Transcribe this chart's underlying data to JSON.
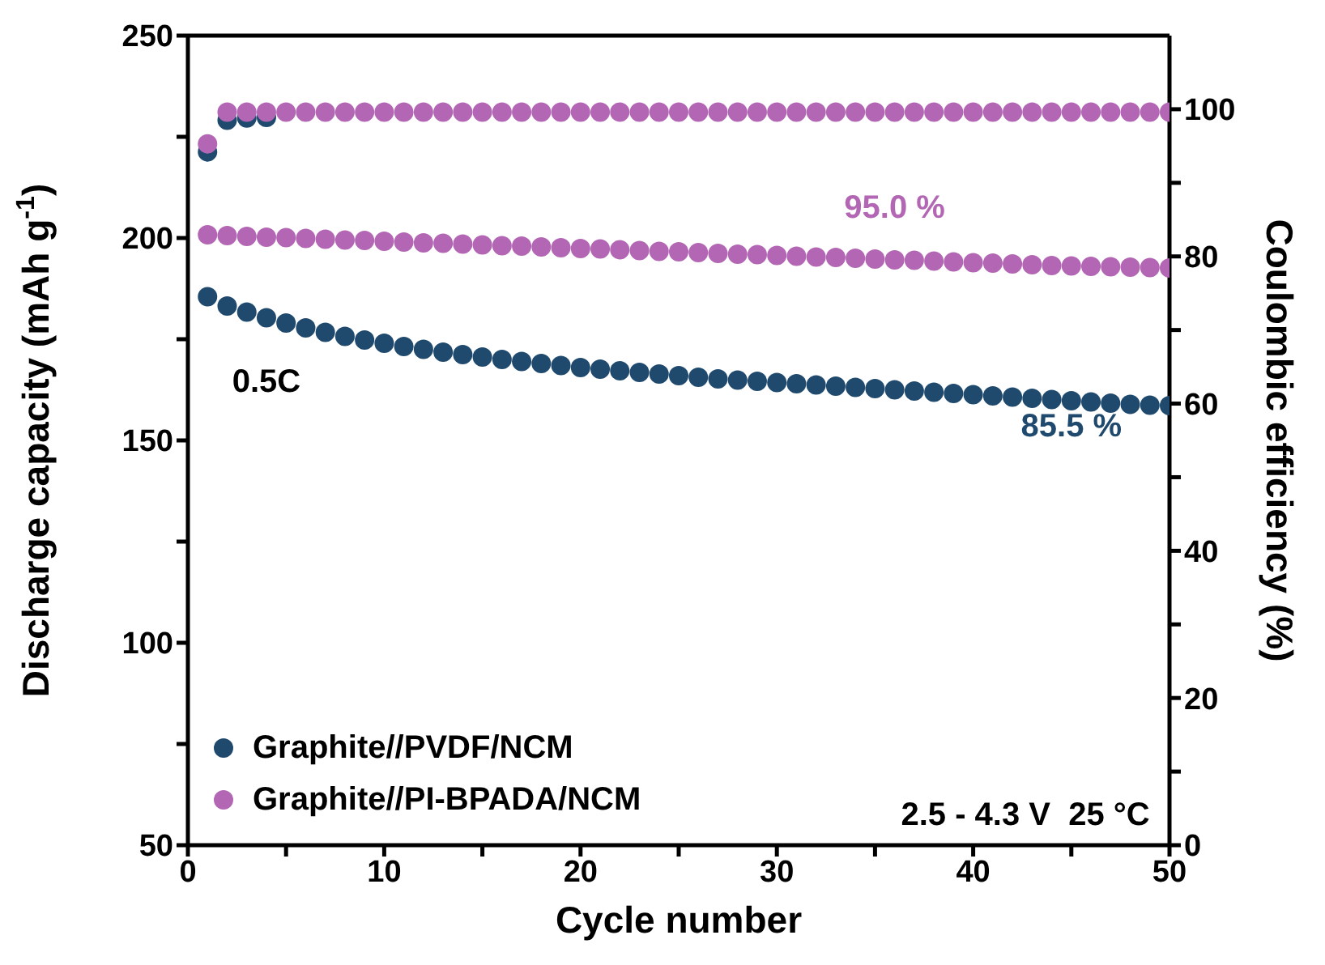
{
  "chart_data": {
    "type": "scatter",
    "xlabel": "Cycle number",
    "ylabel": "Discharge capacity (mAh g$^{-1}$)",
    "y2label": "Coulombic efficiency (%)",
    "x": [
      1,
      2,
      3,
      4,
      5,
      6,
      7,
      8,
      9,
      10,
      11,
      12,
      13,
      14,
      15,
      16,
      17,
      18,
      19,
      20,
      21,
      22,
      23,
      24,
      25,
      26,
      27,
      28,
      29,
      30,
      31,
      32,
      33,
      34,
      35,
      36,
      37,
      38,
      39,
      40,
      41,
      42,
      43,
      44,
      45,
      46,
      47,
      48,
      49,
      50
    ],
    "series": [
      {
        "name": "Graphite//PVDF/NCM",
        "color": "#1f4a6e",
        "values": [
          185.5,
          183.2,
          181.7,
          180.3,
          179.0,
          177.8,
          176.7,
          175.7,
          174.8,
          174.0,
          173.2,
          172.5,
          171.8,
          171.2,
          170.6,
          170.0,
          169.5,
          169.0,
          168.5,
          168.0,
          167.6,
          167.2,
          166.8,
          166.4,
          166.0,
          165.6,
          165.2,
          164.9,
          164.6,
          164.3,
          164.0,
          163.7,
          163.4,
          163.1,
          162.8,
          162.5,
          162.2,
          161.9,
          161.6,
          161.3,
          161.0,
          160.7,
          160.4,
          160.1,
          159.8,
          159.5,
          159.2,
          158.9,
          158.7,
          158.6
        ]
      },
      {
        "name": "Graphite//PI-BPADA/NCM",
        "color": "#b366b3",
        "values": [
          200.8,
          200.6,
          200.4,
          200.2,
          200.1,
          199.9,
          199.7,
          199.5,
          199.4,
          199.2,
          199.0,
          198.8,
          198.7,
          198.5,
          198.3,
          198.1,
          198.0,
          197.8,
          197.6,
          197.4,
          197.3,
          197.1,
          196.9,
          196.7,
          196.6,
          196.4,
          196.2,
          196.0,
          195.9,
          195.7,
          195.5,
          195.3,
          195.2,
          195.0,
          194.8,
          194.6,
          194.5,
          194.3,
          194.1,
          193.9,
          193.8,
          193.6,
          193.4,
          193.2,
          193.1,
          193.0,
          192.9,
          192.8,
          192.7,
          192.6
        ]
      },
      {
        "color": "#1f4a6e",
        "axis": "y2",
        "values": [
          94.2,
          98.5,
          98.8,
          98.9,
          null,
          null,
          null,
          null,
          null,
          null,
          null,
          null,
          null,
          null,
          null,
          null,
          null,
          null,
          null,
          null,
          null,
          null,
          null,
          null,
          null,
          null,
          null,
          null,
          null,
          null,
          null,
          null,
          null,
          null,
          null,
          null,
          null,
          null,
          null,
          null,
          null,
          null,
          null,
          null,
          null,
          null,
          null,
          null,
          null,
          null
        ]
      },
      {
        "color": "#b366b3",
        "axis": "y2",
        "values": [
          95.3,
          99.6,
          99.6,
          99.6,
          99.6,
          99.6,
          99.6,
          99.6,
          99.6,
          99.6,
          99.6,
          99.6,
          99.6,
          99.6,
          99.6,
          99.6,
          99.6,
          99.6,
          99.6,
          99.6,
          99.6,
          99.6,
          99.6,
          99.6,
          99.6,
          99.6,
          99.6,
          99.6,
          99.6,
          99.6,
          99.6,
          99.6,
          99.6,
          99.6,
          99.6,
          99.6,
          99.6,
          99.6,
          99.6,
          99.6,
          99.6,
          99.6,
          99.6,
          99.6,
          99.6,
          99.6,
          99.6,
          99.6,
          99.6,
          99.6
        ]
      }
    ],
    "xlim": [
      0,
      50
    ],
    "xticks": [
      0,
      {
        "value": 5,
        "label": null
      },
      10,
      {
        "value": 15,
        "label": null
      },
      20,
      {
        "value": 25,
        "label": null
      },
      30,
      {
        "value": 35,
        "label": null
      },
      40,
      {
        "value": 45,
        "label": null
      },
      50
    ],
    "ylim": [
      50,
      250
    ],
    "yticks": [
      50,
      {
        "value": 75,
        "label": null
      },
      100,
      {
        "value": 125,
        "label": null
      },
      150,
      {
        "value": 175,
        "label": null
      },
      200,
      {
        "value": 225,
        "label": null
      },
      250
    ],
    "y2lim": [
      0,
      110
    ],
    "y2ticks": [
      0,
      {
        "value": 10,
        "label": null
      },
      20,
      {
        "value": 30,
        "label": null
      },
      40,
      {
        "value": 50,
        "label": null
      },
      60,
      {
        "value": 70,
        "label": null
      },
      80,
      {
        "value": 90,
        "label": null
      },
      100
    ],
    "annotations": [
      "0.5C",
      "95.0 %",
      "85.5 %",
      "2.5 - 4.3 V  25 °C"
    ],
    "legend": "bottom left",
    "marker": "circle"
  }
}
